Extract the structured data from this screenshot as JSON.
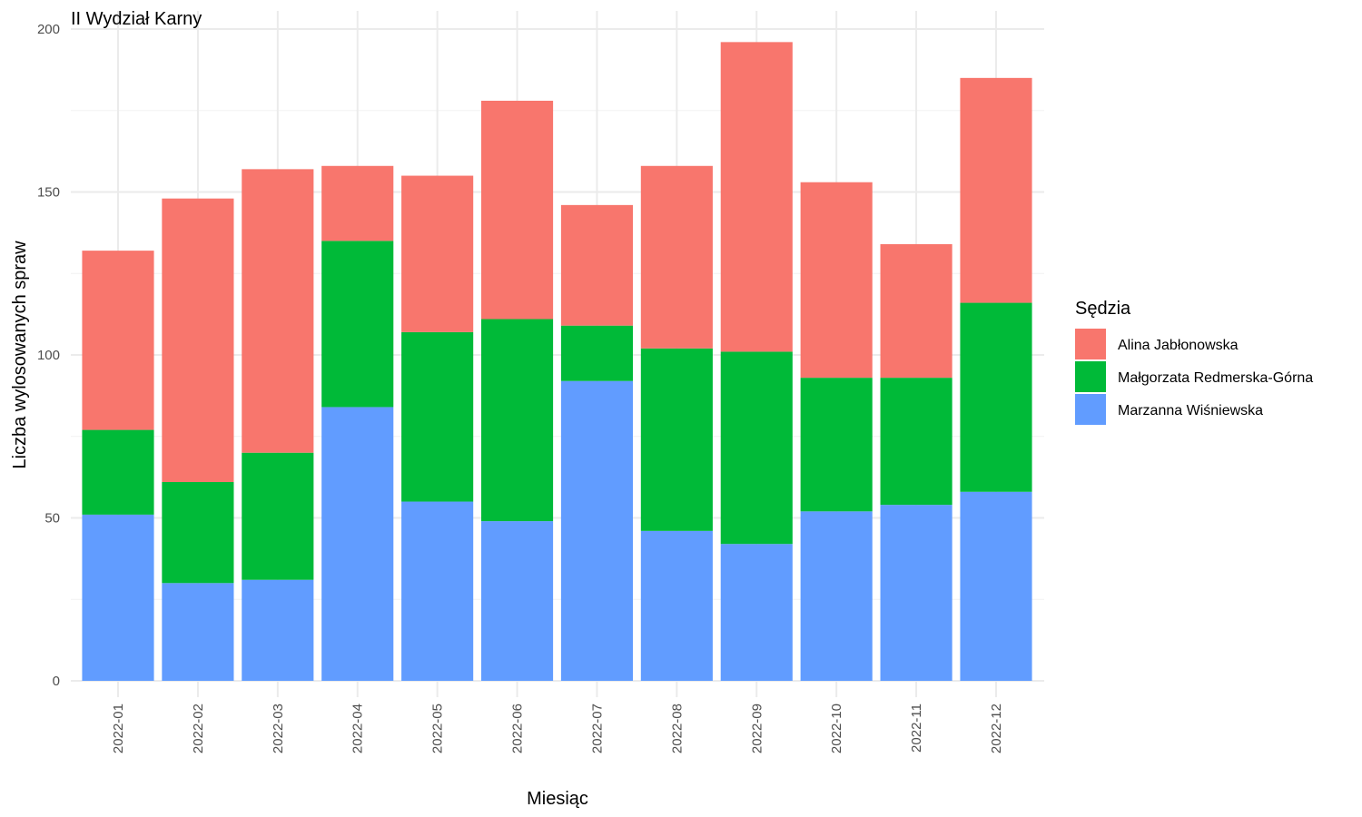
{
  "chart_data": {
    "type": "bar",
    "stacked": true,
    "title": "II Wydział Karny",
    "xlabel": "Miesiąc",
    "ylabel": "Liczba wylosowanych spraw",
    "ylim": [
      0,
      200
    ],
    "yticks": [
      0,
      50,
      100,
      150,
      200
    ],
    "grid": true,
    "legend_position": "right",
    "legend_title": "Sędzia",
    "categories": [
      "2022-01",
      "2022-02",
      "2022-03",
      "2022-04",
      "2022-05",
      "2022-06",
      "2022-07",
      "2022-08",
      "2022-09",
      "2022-10",
      "2022-11",
      "2022-12"
    ],
    "series": [
      {
        "name": "Marzanna Wiśniewska",
        "color": "#619CFF",
        "values": [
          51,
          30,
          31,
          84,
          55,
          49,
          92,
          46,
          42,
          52,
          54,
          58
        ]
      },
      {
        "name": "Małgorzata Redmerska-Górna",
        "color": "#00BA38",
        "values": [
          26,
          31,
          39,
          51,
          52,
          62,
          17,
          56,
          59,
          41,
          39,
          58
        ]
      },
      {
        "name": "Alina Jabłonowska",
        "color": "#F8766D",
        "values": [
          55,
          87,
          87,
          23,
          48,
          67,
          37,
          56,
          95,
          60,
          41,
          69
        ]
      }
    ],
    "legend_order": [
      "Alina Jabłonowska",
      "Małgorzata Redmerska-Górna",
      "Marzanna Wiśniewska"
    ]
  }
}
